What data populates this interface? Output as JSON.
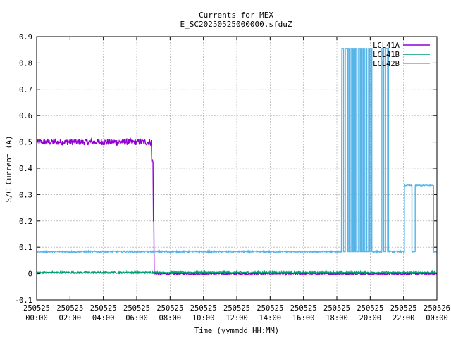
{
  "chart_data": {
    "type": "line",
    "title": "Currents for MEX",
    "subtitle": "E_SC20250525000000.sfduZ",
    "xlabel": "Time (yymmdd HH:MM)",
    "ylabel": "S/C Current (A)",
    "ylim": [
      -0.1,
      0.9
    ],
    "yticks": [
      "-0.1",
      "0",
      "0.1",
      "0.2",
      "0.3",
      "0.4",
      "0.5",
      "0.6",
      "0.7",
      "0.8",
      "0.9"
    ],
    "xlim_hours": [
      0,
      24
    ],
    "xticks": [
      {
        "hour": 0,
        "date": "250525",
        "time": "00:00"
      },
      {
        "hour": 2,
        "date": "250525",
        "time": "02:00"
      },
      {
        "hour": 4,
        "date": "250525",
        "time": "04:00"
      },
      {
        "hour": 6,
        "date": "250525",
        "time": "06:00"
      },
      {
        "hour": 8,
        "date": "250525",
        "time": "08:00"
      },
      {
        "hour": 10,
        "date": "250525",
        "time": "10:00"
      },
      {
        "hour": 12,
        "date": "250525",
        "time": "12:00"
      },
      {
        "hour": 14,
        "date": "250525",
        "time": "14:00"
      },
      {
        "hour": 16,
        "date": "250525",
        "time": "16:00"
      },
      {
        "hour": 18,
        "date": "250525",
        "time": "18:00"
      },
      {
        "hour": 20,
        "date": "250525",
        "time": "20:00"
      },
      {
        "hour": 22,
        "date": "250525",
        "time": "22:00"
      },
      {
        "hour": 24,
        "date": "250526",
        "time": "00:00"
      }
    ],
    "grid": true,
    "legend_position": "top-right",
    "series": [
      {
        "name": "LCL41A",
        "color": "#9400d3",
        "segments": [
          {
            "from": 0.0,
            "to": 6.9,
            "level": 0.5,
            "noise": 0.012
          },
          {
            "from": 6.9,
            "to": 7.0,
            "level": 0.43,
            "noise": 0.01
          },
          {
            "from": 7.0,
            "to": 7.05,
            "level": 0.2,
            "noise": 0.0
          },
          {
            "from": 7.05,
            "to": 24.0,
            "level": 0.0,
            "noise": 0.003
          }
        ]
      },
      {
        "name": "LCL41B",
        "color": "#009e73",
        "segments": [
          {
            "from": 0.0,
            "to": 24.0,
            "level": 0.005,
            "noise": 0.003
          }
        ]
      },
      {
        "name": "LCL42B",
        "color": "#56b4e9",
        "segments": [
          {
            "from": 0.0,
            "to": 18.3,
            "level": 0.083,
            "noise": 0.003
          },
          {
            "from": 18.3,
            "to": 20.1,
            "level": 0.855,
            "switching": true,
            "low": 0.083
          },
          {
            "from": 20.1,
            "to": 20.7,
            "level": 0.083,
            "noise": 0.003
          },
          {
            "from": 20.7,
            "to": 21.1,
            "level": 0.855,
            "switching": true,
            "low": 0.083
          },
          {
            "from": 21.1,
            "to": 22.05,
            "level": 0.083,
            "noise": 0.003
          },
          {
            "from": 22.05,
            "to": 22.5,
            "level": 0.335,
            "noise": 0.002
          },
          {
            "from": 22.5,
            "to": 22.7,
            "level": 0.083,
            "noise": 0.003
          },
          {
            "from": 22.7,
            "to": 23.8,
            "level": 0.335,
            "noise": 0.002
          },
          {
            "from": 23.8,
            "to": 24.0,
            "level": 0.083,
            "noise": 0.003
          }
        ]
      }
    ]
  }
}
